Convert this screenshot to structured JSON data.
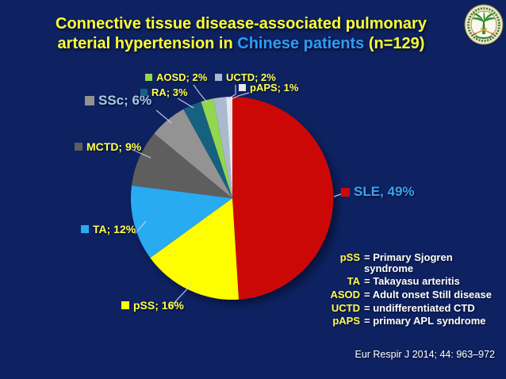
{
  "title": {
    "line1": "Connective tissue disease-associated pulmonary",
    "line2_pre": "arterial hypertension in ",
    "line2_highlight": "Chinese patients",
    "line2_post": " (n=129)"
  },
  "colors": {
    "background": "#0E2161",
    "title_yellow": "#FFFF33",
    "title_blue": "#2E9BF5",
    "label_yellow": "#FFFF4D",
    "sle_label_blue": "#3AA2F2",
    "ssc_label_blue": "#A9C9E8",
    "leader_line": "#CBD6EE"
  },
  "chart_data": {
    "type": "pie",
    "title": "Connective tissue disease-associated pulmonary arterial hypertension in Chinese patients (n=129)",
    "n_patients": 129,
    "direction": "clockwise",
    "start_angle": "12 o'clock",
    "legend_position": "around pie (callout labels)",
    "slices": [
      {
        "label": "SLE",
        "value": 49,
        "display": "SLE, 49%",
        "color": "#CC0807"
      },
      {
        "label": "pSS",
        "value": 16,
        "display": "pSS; 16%",
        "color": "#FEFE00"
      },
      {
        "label": "TA",
        "value": 12,
        "display": "TA; 12%",
        "color": "#28ABF0"
      },
      {
        "label": "MCTD",
        "value": 9,
        "display": "MCTD; 9%",
        "color": "#5E5E5E"
      },
      {
        "label": "SSc",
        "value": 6,
        "display": "SSc; 6%",
        "color": "#939393"
      },
      {
        "label": "RA",
        "value": 3,
        "display": "RA; 3%",
        "color": "#16617F"
      },
      {
        "label": "AOSD",
        "value": 2,
        "display": "AOSD; 2%",
        "color": "#93D64F"
      },
      {
        "label": "UCTD",
        "value": 2,
        "display": "UCTD; 2%",
        "color": "#A9BACF"
      },
      {
        "label": "pAPS",
        "value": 1,
        "display": "pAPS; 1%",
        "color": "#E6E8EC"
      }
    ]
  },
  "abbreviation_key": [
    {
      "abbr": "pSS",
      "definition": "= Primary Sjogren syndrome"
    },
    {
      "abbr": "TA",
      "definition": "= Takayasu arteritis"
    },
    {
      "abbr": "ASOD",
      "definition": "= Adult onset Still disease"
    },
    {
      "abbr": "UCTD",
      "definition": "= undifferentiated CTD"
    },
    {
      "abbr": "pAPS",
      "definition": "= primary APL syndrome"
    }
  ],
  "citation": "Eur Respir J 2014; 44: 963–972",
  "logo": {
    "name": "institution-emblem"
  }
}
